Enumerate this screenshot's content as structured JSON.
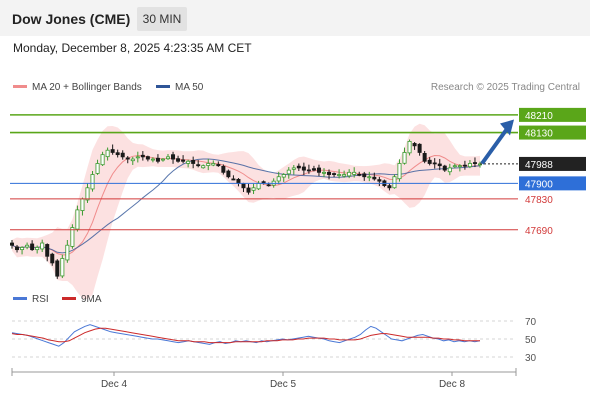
{
  "header": {
    "title": "Dow Jones (CME)",
    "timeframe": "30 MIN",
    "timestamp": "Monday, December 8, 2025 4:23:35 AM CET"
  },
  "legend": {
    "items": [
      {
        "label": "MA 20 + Bollinger Bands",
        "color": "#f08c8c"
      },
      {
        "label": "MA 50",
        "color": "#2f5597"
      }
    ],
    "credit": "Research © 2025 Trading Central"
  },
  "chart_data": [
    {
      "type": "candlestick",
      "title": "",
      "ylim": [
        47440,
        48300
      ],
      "x_ticks": [
        "Dec 4",
        "Dec 5",
        "Dec 8"
      ],
      "current_price": {
        "label": "47988",
        "value": 47988
      },
      "levels": [
        {
          "label": "48210",
          "value": 48210,
          "kind": "target-resistance",
          "color": "#5aa619"
        },
        {
          "label": "48130",
          "value": 48130,
          "kind": "target-resistance",
          "color": "#5aa619"
        },
        {
          "label": "47900",
          "value": 47900,
          "kind": "pivot",
          "color": "#2e6fd8"
        },
        {
          "label": "47830",
          "value": 47830,
          "kind": "support",
          "color": "#d23a3a"
        },
        {
          "label": "47690",
          "value": 47690,
          "kind": "support",
          "color": "#d23a3a"
        }
      ],
      "forecast_arrow": {
        "from": 47990,
        "to": 48180,
        "color": "#2a5ea8"
      },
      "series": [
        {
          "name": "MA 20 + Bollinger Bands",
          "color": "#f08c8c"
        },
        {
          "name": "MA 50",
          "color": "#2f5597"
        }
      ],
      "close_path": [
        47620,
        47600,
        47610,
        47620,
        47600,
        47610,
        47630,
        47570,
        47540,
        47480,
        47560,
        47620,
        47700,
        47780,
        47830,
        47880,
        47940,
        47990,
        48030,
        48050,
        48040,
        48030,
        48020,
        48010,
        48010,
        48020,
        48020,
        48010,
        48010,
        48000,
        48010,
        48020,
        48010,
        48000,
        48000,
        48000,
        47990,
        47980,
        47980,
        47990,
        47990,
        47980,
        47950,
        47930,
        47920,
        47900,
        47880,
        47860,
        47880,
        47900,
        47900,
        47890,
        47910,
        47930,
        47940,
        47960,
        47970,
        47970,
        47960,
        47960,
        47960,
        47950,
        47950,
        47940,
        47940,
        47940,
        47940,
        47950,
        47950,
        47940,
        47930,
        47930,
        47920,
        47910,
        47890,
        47880,
        47930,
        47990,
        48040,
        48090,
        48070,
        48040,
        48000,
        47990,
        47990,
        47980,
        47960,
        47970,
        47980,
        47980,
        47980,
        47990,
        47990,
        47988
      ]
    },
    {
      "type": "line",
      "title": "",
      "ylim": [
        20,
        80
      ],
      "y_ticks": [
        70,
        50,
        30
      ],
      "series": [
        {
          "name": "RSI",
          "color": "#4a78d6",
          "values": [
            57,
            56,
            55,
            54,
            52,
            50,
            48,
            46,
            44,
            42,
            46,
            52,
            58,
            61,
            64,
            66,
            64,
            62,
            60,
            58,
            57,
            56,
            55,
            54,
            53,
            52,
            51,
            50,
            50,
            49,
            48,
            47,
            46,
            47,
            48,
            47,
            46,
            45,
            44,
            46,
            47,
            45,
            46,
            48,
            47,
            48,
            47,
            46,
            48,
            47,
            48,
            49,
            50,
            49,
            50,
            51,
            52,
            53,
            52,
            51,
            50,
            48,
            47,
            46,
            48,
            50,
            52,
            55,
            60,
            64,
            62,
            58,
            54,
            50,
            49,
            48,
            50,
            52,
            54,
            55,
            53,
            51,
            50,
            48,
            49,
            47,
            48,
            47,
            48,
            47,
            48
          ]
        },
        {
          "name": "9MA",
          "color": "#cc2a2a",
          "values": [
            56,
            55,
            55,
            54,
            53,
            52,
            51,
            49,
            48,
            47,
            47,
            48,
            51,
            54,
            57,
            59,
            61,
            62,
            62,
            61,
            60,
            59,
            58,
            57,
            56,
            55,
            54,
            53,
            52,
            51,
            50,
            49,
            48,
            48,
            48,
            47,
            47,
            47,
            46,
            46,
            46,
            46,
            46,
            47,
            47,
            47,
            47,
            47,
            47,
            48,
            48,
            48,
            49,
            49,
            49,
            50,
            50,
            51,
            51,
            51,
            51,
            50,
            50,
            49,
            49,
            49,
            49,
            50,
            52,
            54,
            55,
            56,
            56,
            55,
            54,
            53,
            52,
            52,
            52,
            52,
            52,
            51,
            51,
            50,
            50,
            49,
            49,
            48,
            48,
            48,
            48
          ]
        }
      ]
    }
  ],
  "rsi_legend": {
    "items": [
      {
        "label": "RSI",
        "color": "#4a78d6"
      },
      {
        "label": "9MA",
        "color": "#cc2a2a"
      }
    ]
  }
}
